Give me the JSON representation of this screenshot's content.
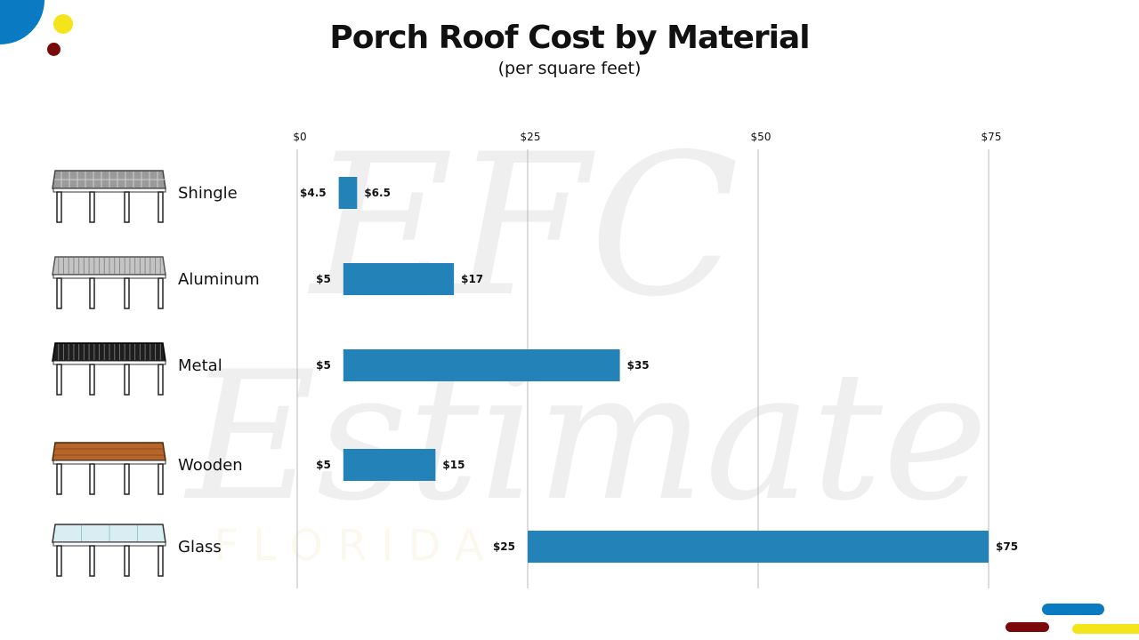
{
  "title": "Porch Roof Cost by Material",
  "subtitle": "(per square feet)",
  "colors": {
    "bar": "#2383b8",
    "blue": "#0a7ac3",
    "yellow": "#f3e51a",
    "maroon": "#7a0a0a"
  },
  "watermark": {
    "line1": "EFC",
    "line2": "Estimate",
    "line3": "FLORIDA"
  },
  "chart_data": {
    "type": "bar",
    "orientation": "horizontal",
    "range_bars": true,
    "title": "Porch Roof Cost by Material",
    "subtitle": "(per square feet)",
    "categories": [
      "Shingle",
      "Aluminum",
      "Metal",
      "Wooden",
      "Glass"
    ],
    "low": [
      4.5,
      5,
      5,
      5,
      25
    ],
    "high": [
      6.5,
      17,
      35,
      15,
      75
    ],
    "low_labels": [
      "$4.5",
      "$5",
      "$5",
      "$5",
      "$25"
    ],
    "high_labels": [
      "$6.5",
      "$17",
      "$35",
      "$15",
      "$75"
    ],
    "xticks": [
      0,
      25,
      50,
      75
    ],
    "xtick_labels": [
      "$0",
      "$25",
      "$50",
      "$75"
    ],
    "xlim": [
      0,
      75
    ],
    "grid": true,
    "icons": [
      "shingle-roof-icon",
      "aluminum-roof-icon",
      "metal-roof-icon",
      "wooden-roof-icon",
      "glass-roof-icon"
    ]
  }
}
